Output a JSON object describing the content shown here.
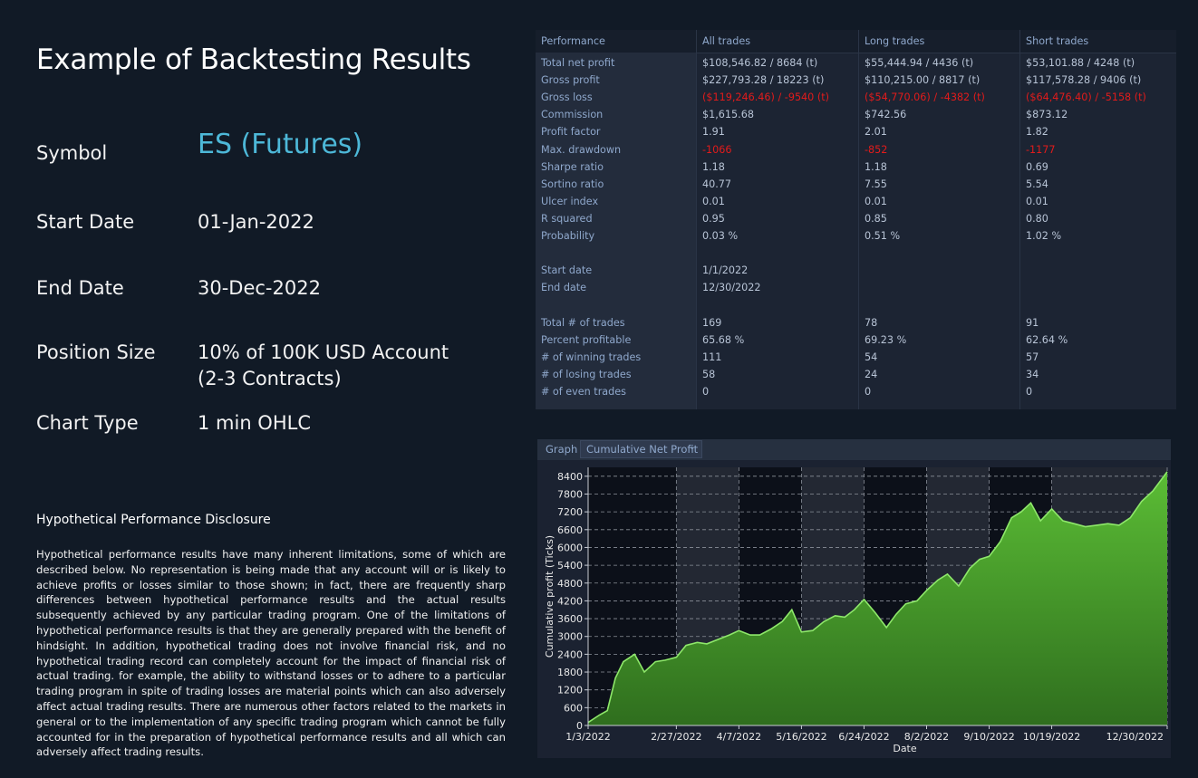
{
  "left": {
    "title": "Example of Backtesting Results",
    "symbol_label": "Symbol",
    "symbol_value": "ES (Futures)",
    "start_label": "Start Date",
    "start_value": "01-Jan-2022",
    "end_label": "End Date",
    "end_value": "30-Dec-2022",
    "position_label": "Position Size",
    "position_value": "10% of 100K USD Account (2-3 Contracts)",
    "charttype_label": "Chart Type",
    "charttype_value": "1 min OHLC",
    "disclosure_title": "Hypothetical Performance Disclosure",
    "disclosure_text": "Hypothetical performance results have many inherent limitations, some of which are described below. No representation is being made that any account will or is likely to achieve profits or losses similar to those shown; in fact, there are frequently sharp differences between hypothetical performance results and the actual results subsequently achieved by any particular trading program. One of the limitations of hypothetical performance results is that they are generally prepared with the benefit of hindsight. In addition, hypothetical trading does not involve financial risk, and no hypothetical trading record can completely account for the impact of financial risk of actual trading. for example, the ability to withstand losses or to adhere to a particular trading program in spite of trading losses are material points which can also adversely affect actual trading results. There are numerous other factors related to the markets in general or to the implementation of any specific trading program which cannot be fully accounted for in the preparation of hypothetical performance results and all which can adversely affect trading results."
  },
  "table": {
    "headers": [
      "Performance",
      "All trades",
      "Long trades",
      "Short trades"
    ],
    "negative_color": "#e21b1b",
    "rows": [
      {
        "label": "Total net profit",
        "values": [
          "$108,546.82 / 8684 (t)",
          "$55,444.94 / 4436 (t)",
          "$53,101.88 / 4248 (t)"
        ],
        "negative": false
      },
      {
        "label": "Gross profit",
        "values": [
          "$227,793.28 / 18223 (t)",
          "$110,215.00 / 8817 (t)",
          "$117,578.28 / 9406 (t)"
        ],
        "negative": false
      },
      {
        "label": "Gross loss",
        "values": [
          "($119,246.46) / -9540 (t)",
          "($54,770.06) / -4382 (t)",
          "($64,476.40) / -5158 (t)"
        ],
        "negative": true
      },
      {
        "label": "Commission",
        "values": [
          "$1,615.68",
          "$742.56",
          "$873.12"
        ],
        "negative": false
      },
      {
        "label": "Profit factor",
        "values": [
          "1.91",
          "2.01",
          "1.82"
        ],
        "negative": false
      },
      {
        "label": "Max. drawdown",
        "values": [
          "-1066",
          "-852",
          "-1177"
        ],
        "negative": true
      },
      {
        "label": "Sharpe ratio",
        "values": [
          "1.18",
          "1.18",
          "0.69"
        ],
        "negative": false
      },
      {
        "label": "Sortino ratio",
        "values": [
          "40.77",
          "7.55",
          "5.54"
        ],
        "negative": false
      },
      {
        "label": "Ulcer index",
        "values": [
          "0.01",
          "0.01",
          "0.01"
        ],
        "negative": false
      },
      {
        "label": "R squared",
        "values": [
          "0.95",
          "0.85",
          "0.80"
        ],
        "negative": false
      },
      {
        "label": "Probability",
        "values": [
          "0.03 %",
          "0.51 %",
          "1.02 %"
        ],
        "negative": false
      },
      {
        "label": "",
        "values": [
          "",
          "",
          ""
        ],
        "negative": false
      },
      {
        "label": "Start date",
        "values": [
          "1/1/2022",
          "",
          ""
        ],
        "negative": false
      },
      {
        "label": "End date",
        "values": [
          "12/30/2022",
          "",
          ""
        ],
        "negative": false
      },
      {
        "label": "",
        "values": [
          "",
          "",
          ""
        ],
        "negative": false
      },
      {
        "label": "Total # of trades",
        "values": [
          "169",
          "78",
          "91"
        ],
        "negative": false
      },
      {
        "label": "Percent profitable",
        "values": [
          "65.68 %",
          "69.23 %",
          "62.64 %"
        ],
        "negative": false
      },
      {
        "label": "# of winning trades",
        "values": [
          "111",
          "54",
          "57"
        ],
        "negative": false
      },
      {
        "label": "# of losing trades",
        "values": [
          "58",
          "24",
          "34"
        ],
        "negative": false
      },
      {
        "label": "# of even trades",
        "values": [
          "0",
          "0",
          "0"
        ],
        "negative": false
      }
    ]
  },
  "graph": {
    "tab_label": "Graph",
    "select_value": "Cumulative Net Profit",
    "chevron_icon": "chevron-down-icon"
  },
  "chart_data": {
    "type": "area",
    "xlabel": "Date",
    "ylabel": "Cumulative profit (Ticks)",
    "ylim": [
      0,
      8700
    ],
    "yticks": [
      0,
      600,
      1200,
      1800,
      2400,
      3000,
      3600,
      4200,
      4800,
      5400,
      6000,
      6600,
      7200,
      7800,
      8400
    ],
    "xticks": [
      "1/3/2022",
      "2/27/2022",
      "4/7/2022",
      "5/16/2022",
      "6/24/2022",
      "8/2/2022",
      "9/10/2022",
      "10/19/2022",
      "12/30/2022"
    ],
    "grid": true,
    "fill_color": "#4fa82e",
    "line_color": "#8ee86a",
    "x": [
      "1/3/2022",
      "1/10/2022",
      "1/15/2022",
      "1/20/2022",
      "1/25/2022",
      "2/1/2022",
      "2/7/2022",
      "2/14/2022",
      "2/20/2022",
      "2/27/2022",
      "3/5/2022",
      "3/12/2022",
      "3/18/2022",
      "3/25/2022",
      "4/1/2022",
      "4/7/2022",
      "4/14/2022",
      "4/20/2022",
      "4/27/2022",
      "5/4/2022",
      "5/10/2022",
      "5/16/2022",
      "5/23/2022",
      "5/30/2022",
      "6/6/2022",
      "6/12/2022",
      "6/18/2022",
      "6/24/2022",
      "7/1/2022",
      "7/8/2022",
      "7/14/2022",
      "7/20/2022",
      "7/27/2022",
      "8/2/2022",
      "8/9/2022",
      "8/15/2022",
      "8/22/2022",
      "8/29/2022",
      "9/4/2022",
      "9/10/2022",
      "9/17/2022",
      "9/24/2022",
      "9/30/2022",
      "10/6/2022",
      "10/12/2022",
      "10/19/2022",
      "10/26/2022",
      "11/2/2022",
      "11/9/2022",
      "11/16/2022",
      "11/23/2022",
      "11/30/2022",
      "12/7/2022",
      "12/14/2022",
      "12/21/2022",
      "12/30/2022"
    ],
    "values": [
      100,
      350,
      500,
      1600,
      2150,
      2400,
      1800,
      2150,
      2200,
      2300,
      2700,
      2800,
      2750,
      2900,
      3050,
      3200,
      3050,
      3050,
      3250,
      3500,
      3900,
      3150,
      3200,
      3500,
      3700,
      3650,
      3900,
      4250,
      3800,
      3300,
      3750,
      4100,
      4200,
      4550,
      4900,
      5100,
      4700,
      5300,
      5600,
      5700,
      6200,
      7000,
      7200,
      7500,
      6900,
      7300,
      6900,
      6800,
      6700,
      6750,
      6800,
      6750,
      7000,
      7550,
      7900,
      8550
    ]
  }
}
